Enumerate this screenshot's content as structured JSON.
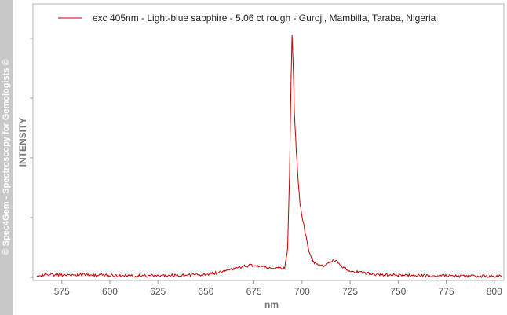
{
  "watermark": "© Spec4Gem - Spectroscopy for Gemologists ©",
  "chart_data": {
    "type": "line",
    "xlabel": "nm",
    "ylabel": "INTENSITY",
    "xlim": [
      560,
      805
    ],
    "ylim": [
      0,
      1
    ],
    "x_ticks": [
      575,
      600,
      625,
      650,
      675,
      700,
      725,
      750,
      775,
      800
    ],
    "y_tick_labels": false,
    "grid": false,
    "legend_position": "top-left",
    "series": [
      {
        "name": "exc 405nm - Light-blue sapphire - 5.06 ct rough - Guroji, Mambilla, Taraba, Nigeria",
        "color": "#cc0000",
        "x": [
          562,
          570,
          580,
          590,
          600,
          610,
          620,
          630,
          640,
          650,
          655,
          660,
          665,
          670,
          673,
          676,
          680,
          684,
          688,
          691,
          692.5,
          693.5,
          694.3,
          694.8,
          695.3,
          696,
          697,
          698,
          699,
          700,
          701,
          702,
          703,
          704,
          705,
          706,
          708,
          710,
          712,
          714,
          716,
          718,
          720,
          723,
          726,
          730,
          735,
          740,
          745,
          750,
          760,
          770,
          780,
          790,
          800,
          804
        ],
        "y": [
          0.01,
          0.01,
          0.012,
          0.01,
          0.008,
          0.006,
          0.006,
          0.008,
          0.01,
          0.012,
          0.018,
          0.025,
          0.035,
          0.045,
          0.05,
          0.048,
          0.042,
          0.038,
          0.035,
          0.04,
          0.12,
          0.42,
          0.82,
          1.0,
          0.9,
          0.68,
          0.52,
          0.4,
          0.3,
          0.25,
          0.21,
          0.17,
          0.13,
          0.1,
          0.08,
          0.065,
          0.05,
          0.045,
          0.05,
          0.06,
          0.07,
          0.065,
          0.05,
          0.035,
          0.025,
          0.02,
          0.015,
          0.012,
          0.01,
          0.009,
          0.008,
          0.007,
          0.006,
          0.005,
          0.004,
          0.004
        ]
      }
    ]
  }
}
